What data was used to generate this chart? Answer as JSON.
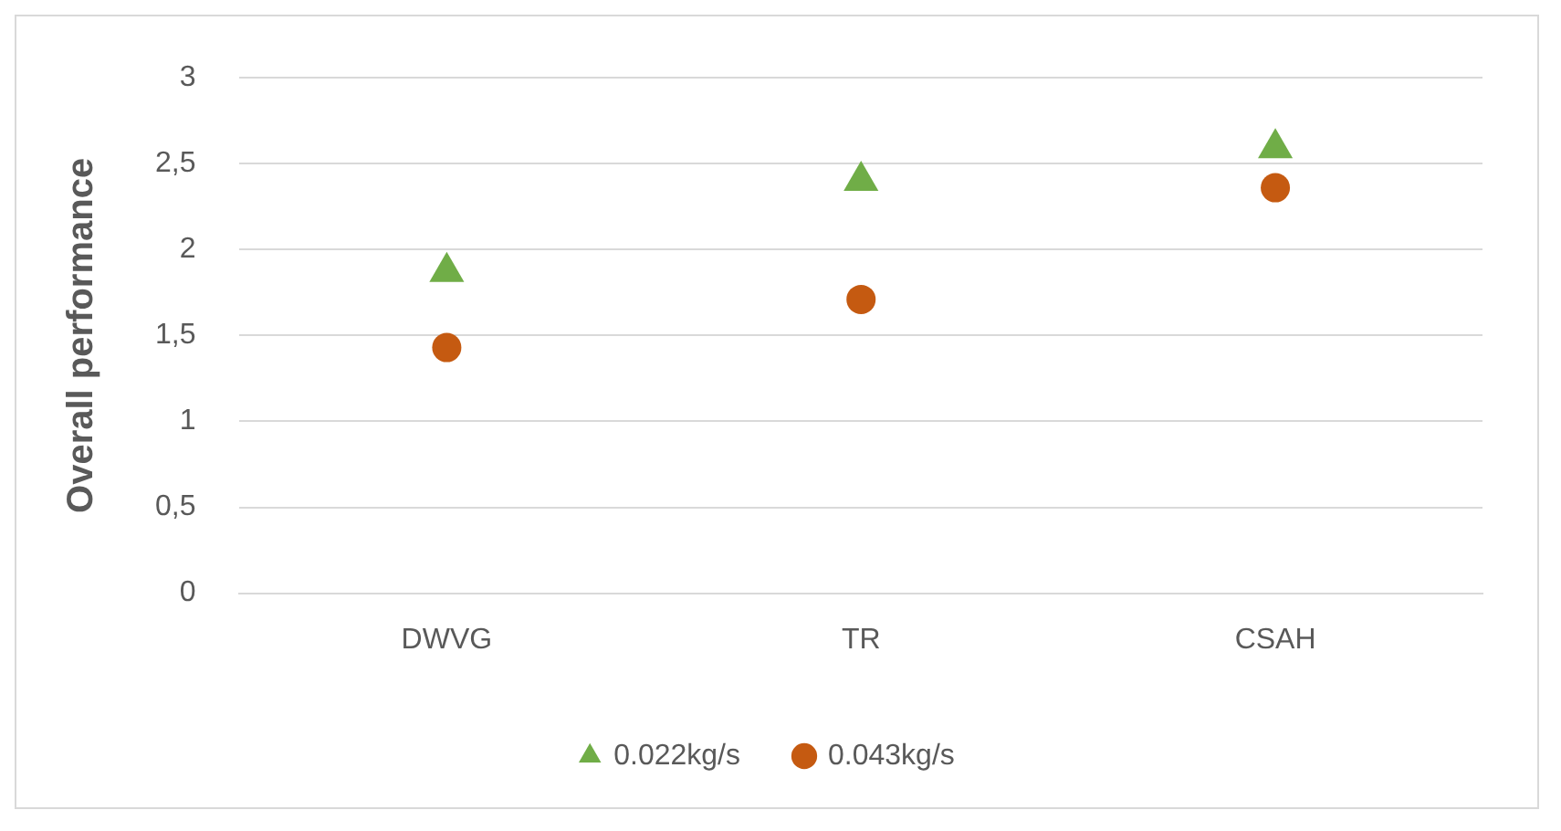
{
  "chart_data": {
    "type": "scatter",
    "ylabel": "Overall performance",
    "categories": [
      "DWVG",
      "TR",
      "CSAH"
    ],
    "series": [
      {
        "name": "0.022kg/s",
        "color": "#70ad47",
        "marker": "triangle",
        "values": [
          1.87,
          2.4,
          2.59
        ]
      },
      {
        "name": "0.043kg/s",
        "color": "#c55a11",
        "marker": "circle",
        "values": [
          1.43,
          1.71,
          2.36
        ]
      }
    ],
    "ylim": [
      0,
      3
    ],
    "yticks": [
      0,
      {
        "value": 0.5,
        "label": "0,5"
      },
      1,
      {
        "value": 1.5,
        "label": "1,5"
      },
      2,
      {
        "value": 2.5,
        "label": "2,5"
      },
      3
    ],
    "grid": "y",
    "legend": "bottom"
  }
}
